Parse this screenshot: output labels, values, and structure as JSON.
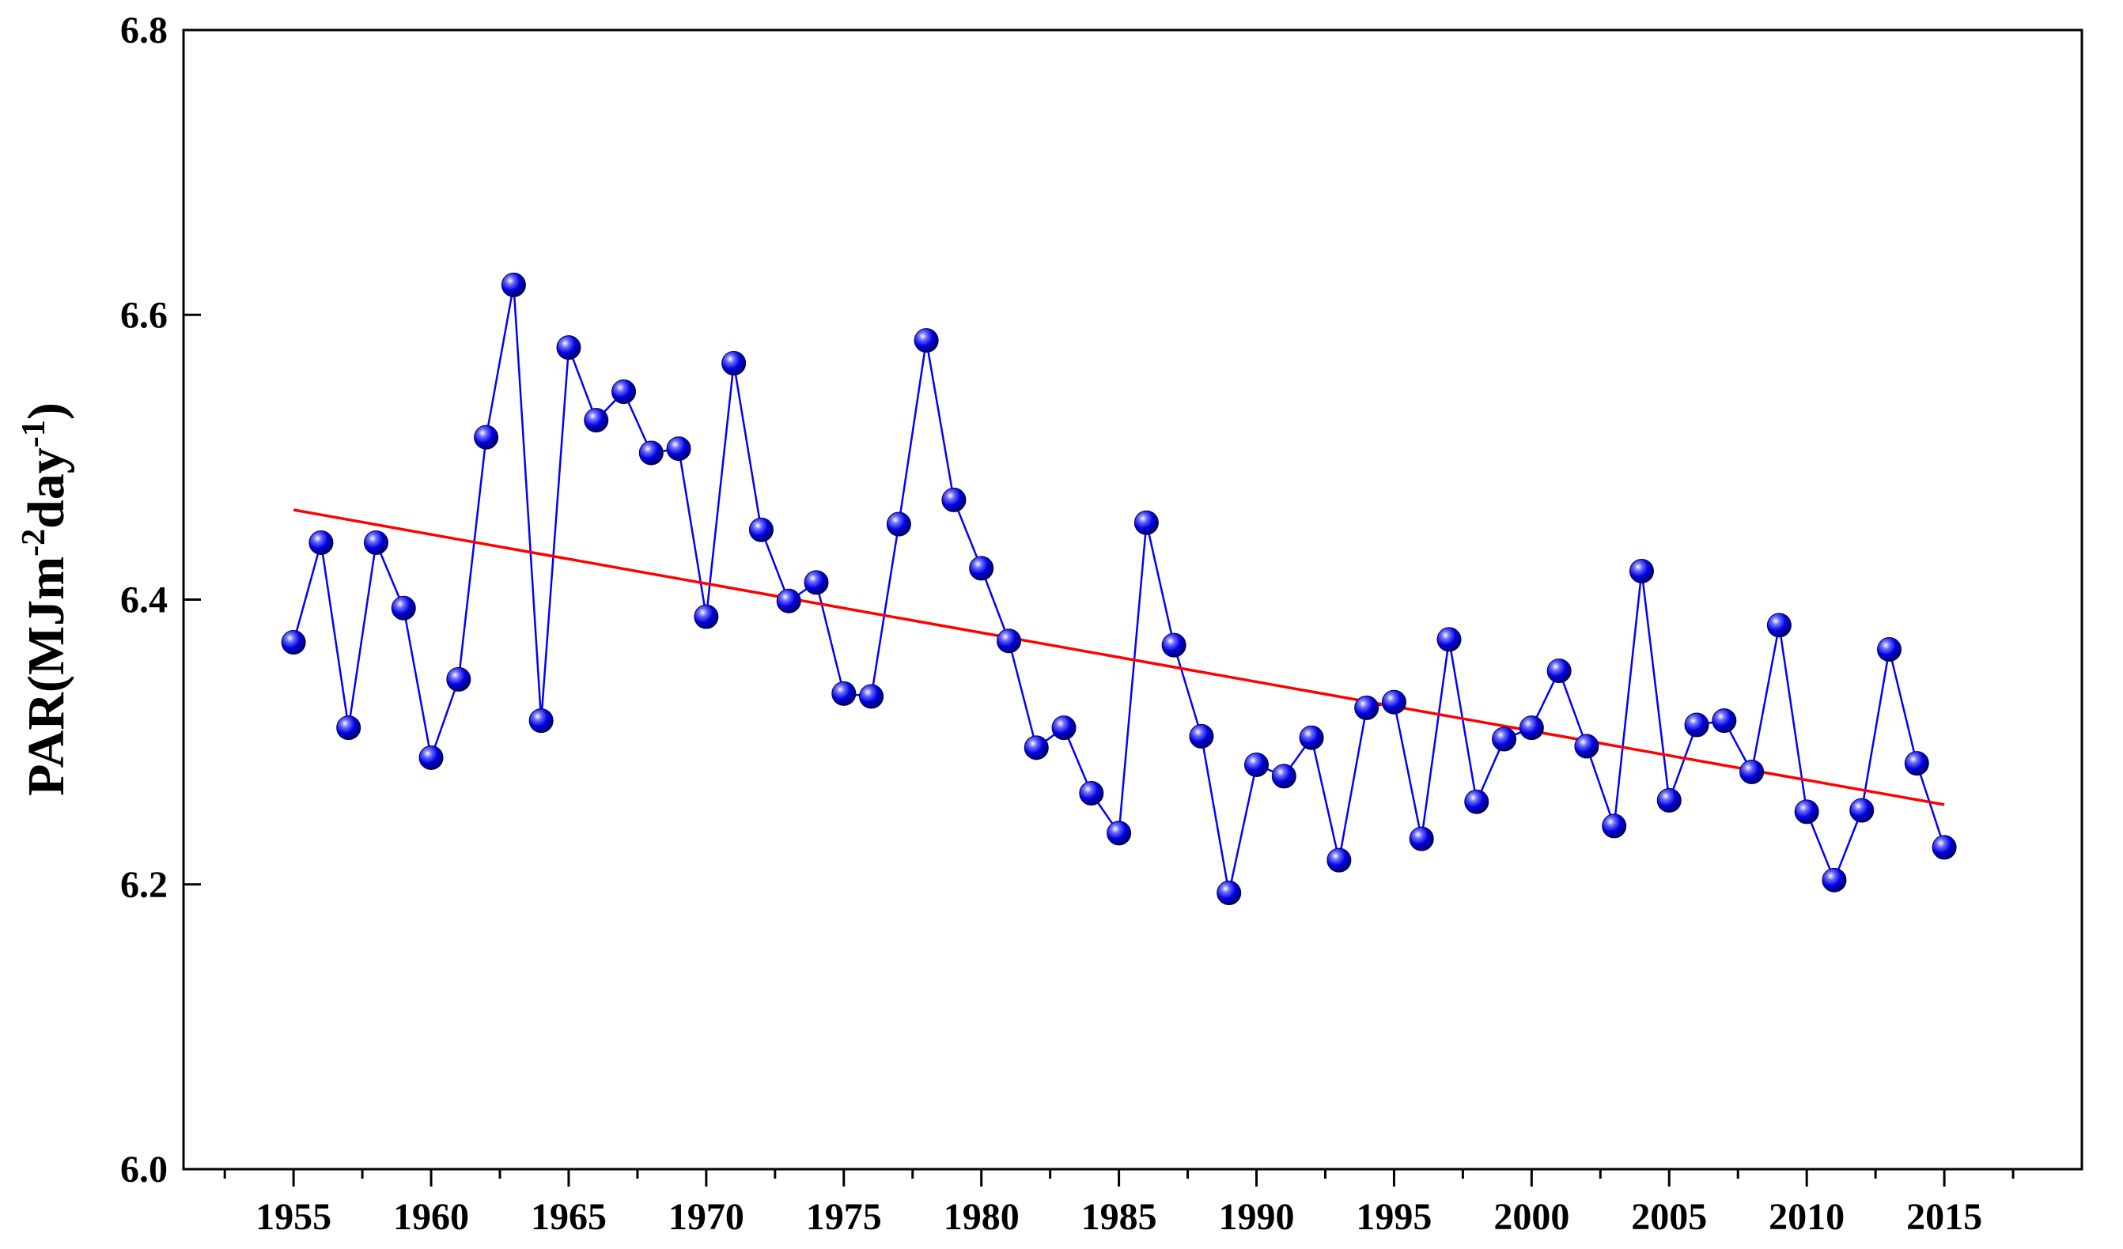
{
  "chart_data": {
    "type": "line",
    "title": "",
    "xlabel": "",
    "ylabel_parts": [
      "PAR(MJm",
      "-2",
      "day",
      "-1",
      ")"
    ],
    "xlim": [
      1951,
      2020
    ],
    "ylim": [
      6.0,
      6.8
    ],
    "xticks": [
      1955,
      1960,
      1965,
      1970,
      1975,
      1980,
      1985,
      1990,
      1995,
      2000,
      2005,
      2010,
      2015
    ],
    "yticks": [
      "6.0",
      "6.2",
      "6.4",
      "6.6",
      "6.8"
    ],
    "grid": false,
    "legend": "none",
    "series": [
      {
        "name": "PAR",
        "color": "#0000ff",
        "marker": "sphere",
        "x": [
          1955,
          1956,
          1957,
          1958,
          1959,
          1960,
          1961,
          1962,
          1963,
          1964,
          1965,
          1966,
          1967,
          1968,
          1969,
          1970,
          1971,
          1972,
          1973,
          1974,
          1975,
          1976,
          1977,
          1978,
          1979,
          1980,
          1981,
          1982,
          1983,
          1984,
          1985,
          1986,
          1987,
          1988,
          1989,
          1990,
          1991,
          1992,
          1993,
          1994,
          1995,
          1996,
          1997,
          1998,
          1999,
          2000,
          2001,
          2002,
          2003,
          2004,
          2005,
          2006,
          2007,
          2008,
          2009,
          2010,
          2011,
          2012,
          2013,
          2014,
          2015
        ],
        "y": [
          6.37,
          6.44,
          6.31,
          6.44,
          6.394,
          6.289,
          6.344,
          6.514,
          6.621,
          6.315,
          6.577,
          6.526,
          6.546,
          6.503,
          6.506,
          6.388,
          6.566,
          6.449,
          6.399,
          6.412,
          6.334,
          6.332,
          6.453,
          6.582,
          6.47,
          6.422,
          6.371,
          6.296,
          6.31,
          6.264,
          6.236,
          6.454,
          6.368,
          6.304,
          6.194,
          6.284,
          6.276,
          6.303,
          6.217,
          6.324,
          6.328,
          6.232,
          6.372,
          6.258,
          6.302,
          6.31,
          6.35,
          6.297,
          6.241,
          6.42,
          6.259,
          6.312,
          6.315,
          6.279,
          6.382,
          6.251,
          6.203,
          6.252,
          6.365,
          6.285,
          6.226
        ]
      },
      {
        "name": "Linear fit",
        "color": "#ff0000",
        "marker": "none",
        "x": [
          1955,
          2015
        ],
        "y": [
          6.463,
          6.256
        ]
      }
    ]
  }
}
